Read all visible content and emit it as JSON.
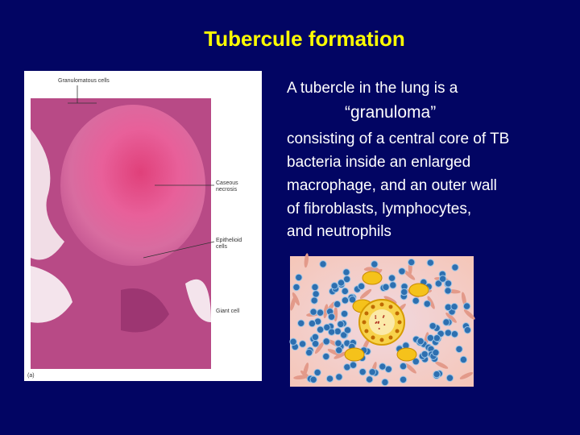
{
  "title": "Tubercule formation",
  "figure": {
    "labels": [
      [
        "Granulomatous cells"
      ],
      [
        "Caseous",
        "necrosis"
      ],
      [
        "Epithelioid",
        "cells"
      ],
      [
        "Giant cell"
      ]
    ],
    "panel": "(a)"
  },
  "body": {
    "lines": [
      "A tubercle in the lung is a",
      "“granuloma”",
      "consisting of a central core of TB",
      "bacteria inside an enlarged",
      "macrophage, and an outer wall",
      "of fibroblasts, lymphocytes,",
      "and neutrophils"
    ]
  }
}
